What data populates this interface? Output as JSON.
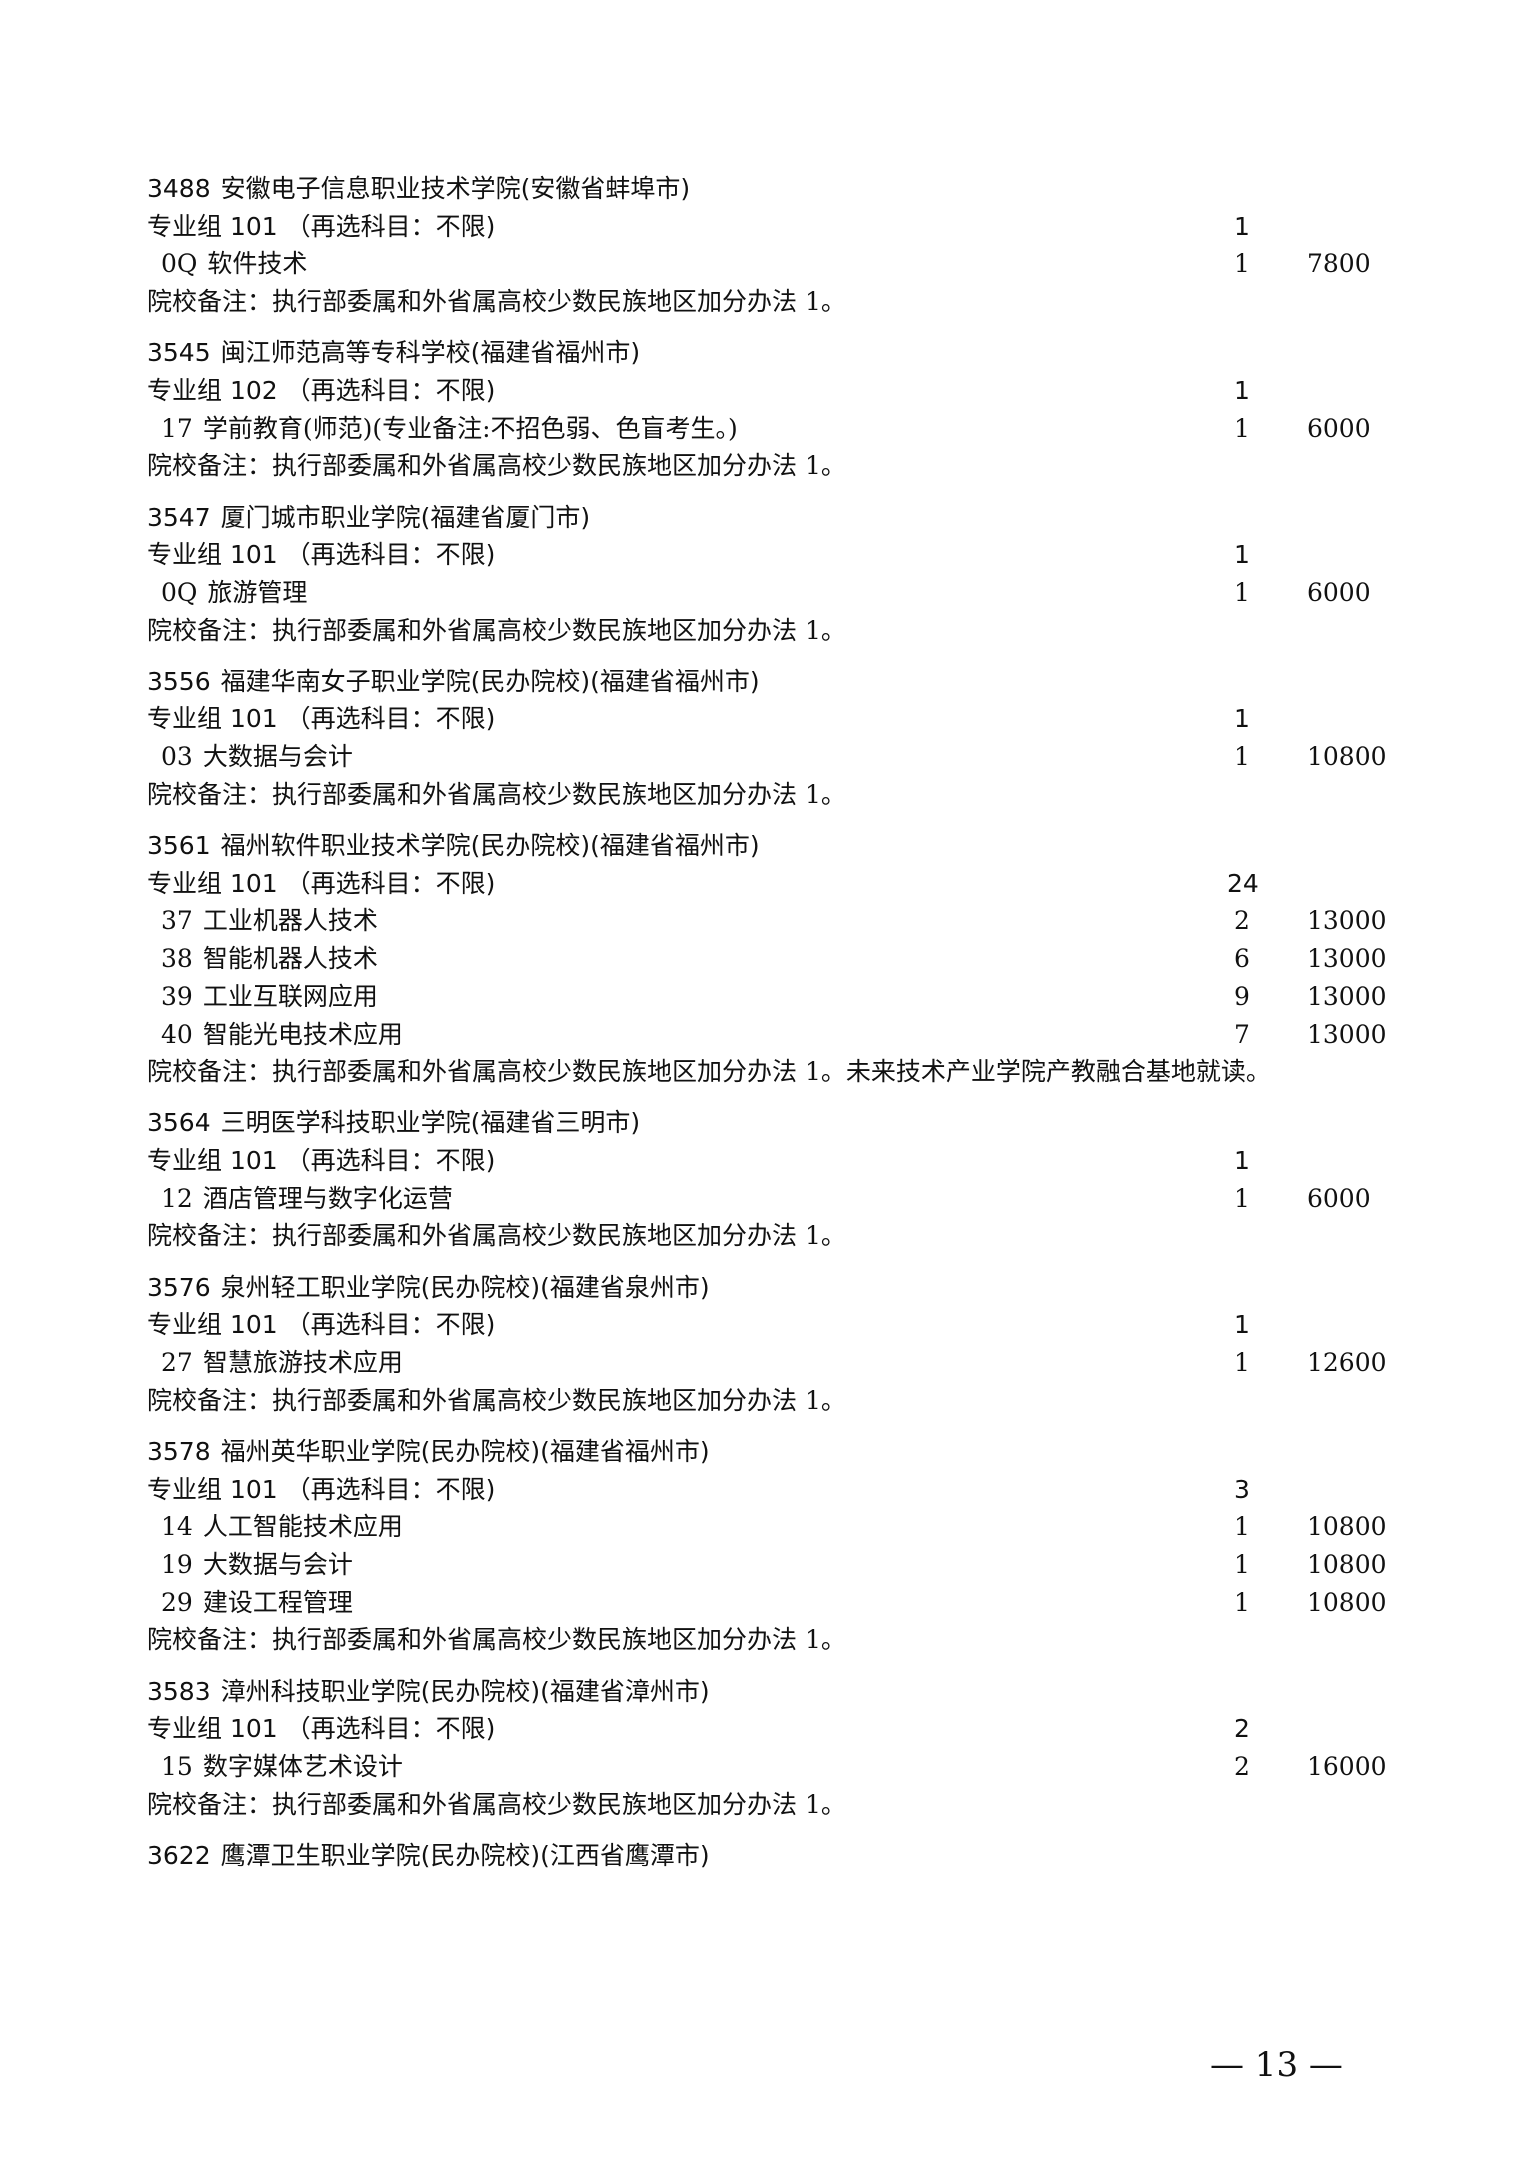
{
  "note_label": "院校备注：",
  "schools": [
    {
      "code": "3488",
      "name": "安徽电子信息职业技术学院(安徽省蚌埠市)",
      "group": "专业组 101 （再选科目：不限)",
      "group_count": "1",
      "majors": [
        {
          "code": "0Q",
          "name": "软件技术",
          "count": "1",
          "fee": "7800"
        }
      ],
      "note": "执行部委属和外省属高校少数民族地区加分办法 1。"
    },
    {
      "code": "3545",
      "name": "闽江师范高等专科学校(福建省福州市)",
      "group": "专业组 102 （再选科目：不限)",
      "group_count": "1",
      "majors": [
        {
          "code": "17",
          "name": "学前教育(师范)(专业备注:不招色弱、色盲考生。)",
          "count": "1",
          "fee": "6000"
        }
      ],
      "note": "执行部委属和外省属高校少数民族地区加分办法 1。"
    },
    {
      "code": "3547",
      "name": "厦门城市职业学院(福建省厦门市)",
      "group": "专业组 101 （再选科目：不限)",
      "group_count": "1",
      "majors": [
        {
          "code": "0Q",
          "name": "旅游管理",
          "count": "1",
          "fee": "6000"
        }
      ],
      "note": "执行部委属和外省属高校少数民族地区加分办法 1。"
    },
    {
      "code": "3556",
      "name": "福建华南女子职业学院(民办院校)(福建省福州市)",
      "group": "专业组 101 （再选科目：不限)",
      "group_count": "1",
      "majors": [
        {
          "code": "03",
          "name": "大数据与会计",
          "count": "1",
          "fee": "10800"
        }
      ],
      "note": "执行部委属和外省属高校少数民族地区加分办法 1。"
    },
    {
      "code": "3561",
      "name": "福州软件职业技术学院(民办院校)(福建省福州市)",
      "group": "专业组 101 （再选科目：不限)",
      "group_count": "24",
      "majors": [
        {
          "code": "37",
          "name": "工业机器人技术",
          "count": "2",
          "fee": "13000"
        },
        {
          "code": "38",
          "name": "智能机器人技术",
          "count": "6",
          "fee": "13000"
        },
        {
          "code": "39",
          "name": "工业互联网应用",
          "count": "9",
          "fee": "13000"
        },
        {
          "code": "40",
          "name": "智能光电技术应用",
          "count": "7",
          "fee": "13000"
        }
      ],
      "note": "执行部委属和外省属高校少数民族地区加分办法 1。未来技术产业学院产教融合基地就读。"
    },
    {
      "code": "3564",
      "name": "三明医学科技职业学院(福建省三明市)",
      "group": "专业组 101 （再选科目：不限)",
      "group_count": "1",
      "majors": [
        {
          "code": "12",
          "name": "酒店管理与数字化运营",
          "count": "1",
          "fee": "6000"
        }
      ],
      "note": "执行部委属和外省属高校少数民族地区加分办法 1。"
    },
    {
      "code": "3576",
      "name": "泉州轻工职业学院(民办院校)(福建省泉州市)",
      "group": "专业组 101 （再选科目：不限)",
      "group_count": "1",
      "majors": [
        {
          "code": "27",
          "name": "智慧旅游技术应用",
          "count": "1",
          "fee": "12600"
        }
      ],
      "note": "执行部委属和外省属高校少数民族地区加分办法 1。"
    },
    {
      "code": "3578",
      "name": "福州英华职业学院(民办院校)(福建省福州市)",
      "group": "专业组 101 （再选科目：不限)",
      "group_count": "3",
      "majors": [
        {
          "code": "14",
          "name": "人工智能技术应用",
          "count": "1",
          "fee": "10800"
        },
        {
          "code": "19",
          "name": "大数据与会计",
          "count": "1",
          "fee": "10800"
        },
        {
          "code": "29",
          "name": "建设工程管理",
          "count": "1",
          "fee": "10800"
        }
      ],
      "note": "执行部委属和外省属高校少数民族地区加分办法 1。"
    },
    {
      "code": "3583",
      "name": "漳州科技职业学院(民办院校)(福建省漳州市)",
      "group": "专业组 101 （再选科目：不限)",
      "group_count": "2",
      "majors": [
        {
          "code": "15",
          "name": "数字媒体艺术设计",
          "count": "2",
          "fee": "16000"
        }
      ],
      "note": "执行部委属和外省属高校少数民族地区加分办法 1。"
    },
    {
      "code": "3622",
      "name": "鹰潭卫生职业学院(民办院校)(江西省鹰潭市)"
    }
  ],
  "page_number": "— 13 —"
}
